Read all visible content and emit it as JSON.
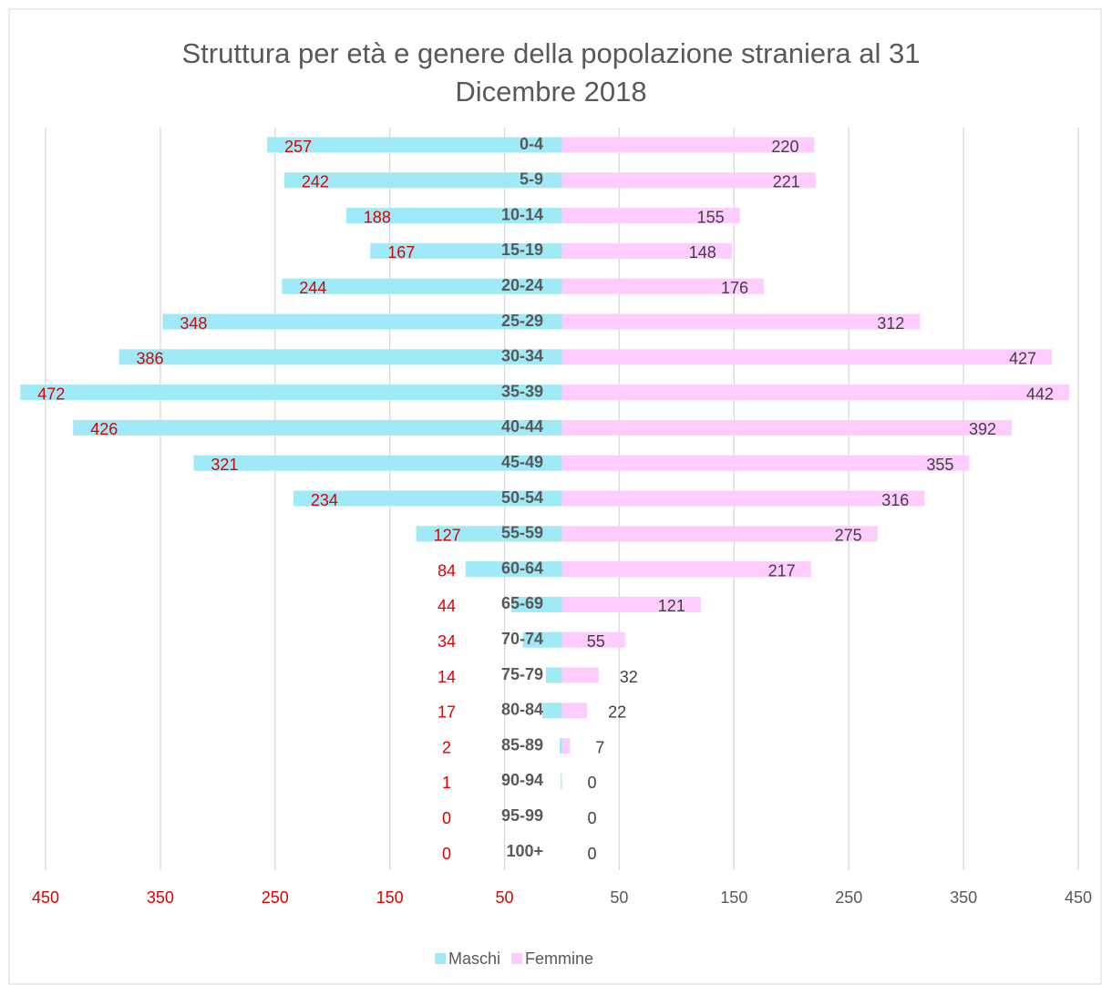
{
  "chart_data": {
    "type": "bar",
    "orientation": "horizontal",
    "stacked": false,
    "title": "Struttura per età e genere della popolazione straniera al 31 Dicembre 2018",
    "categories": [
      "0-4",
      "5-9",
      "10-14",
      "15-19",
      "20-24",
      "25-29",
      "30-34",
      "35-39",
      "40-44",
      "45-49",
      "50-54",
      "55-59",
      "60-64",
      "65-69",
      "70-74",
      "75-79",
      "80-84",
      "85-89",
      "90-94",
      "95-99",
      "100+"
    ],
    "series": [
      {
        "name": "Maschi",
        "color": "#a0e9f6",
        "label_color": "#e00000",
        "values": [
          -257,
          -242,
          -188,
          -167,
          -244,
          -348,
          -386,
          -472,
          -426,
          -321,
          -234,
          -127,
          -84,
          -44,
          -34,
          -14,
          -17,
          -2,
          -1,
          0,
          0
        ],
        "value_labels": [
          "257",
          "242",
          "188",
          "167",
          "244",
          "348",
          "386",
          "472",
          "426",
          "321",
          "234",
          "127",
          "84",
          "44",
          "34",
          "14",
          "17",
          "2",
          "1",
          "0",
          "0"
        ]
      },
      {
        "name": "Femmine",
        "color": "#ffccff",
        "label_color": "#404040",
        "values": [
          220,
          221,
          155,
          148,
          176,
          312,
          427,
          442,
          392,
          355,
          316,
          275,
          217,
          121,
          55,
          32,
          22,
          7,
          0,
          0,
          0
        ]
      }
    ],
    "xlim": [
      -450,
      450
    ],
    "xticks": [
      {
        "value": -450,
        "label": "450"
      },
      {
        "value": -350,
        "label": "350"
      },
      {
        "value": -250,
        "label": "250"
      },
      {
        "value": -150,
        "label": "150"
      },
      {
        "value": -50,
        "label": "50"
      },
      50,
      150,
      250,
      350,
      450
    ],
    "grid": true,
    "legend": "bottom"
  }
}
